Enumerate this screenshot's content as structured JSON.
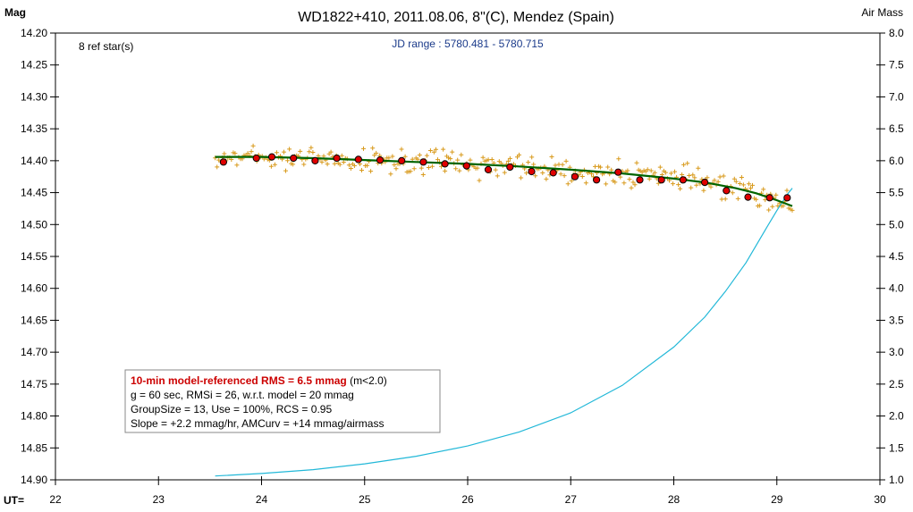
{
  "chart_data": {
    "type": "scatter",
    "title": "WD1822+410, 2011.08.06, 8\"(C), Mendez (Spain)",
    "ylabel_left": "Mag",
    "ylabel_right": "Air Mass",
    "xlabel": "UT=",
    "ylim_left": [
      14.9,
      14.2
    ],
    "ylim_right": [
      1.0,
      8.0
    ],
    "xlim": [
      22,
      30
    ],
    "grid": false,
    "x_ticks": [
      "22",
      "23",
      "24",
      "25",
      "26",
      "27",
      "28",
      "29",
      "30"
    ],
    "y_left_ticks": [
      "14.20",
      "14.25",
      "14.30",
      "14.35",
      "14.40",
      "14.45",
      "14.50",
      "14.55",
      "14.60",
      "14.65",
      "14.70",
      "14.75",
      "14.80",
      "14.85",
      "14.90"
    ],
    "y_right_ticks": [
      "8.0",
      "7.5",
      "7.0",
      "6.5",
      "6.0",
      "5.5",
      "5.0",
      "4.5",
      "4.0",
      "3.5",
      "3.0",
      "2.5",
      "2.0",
      "1.5",
      "1.0"
    ],
    "ref_stars_text": "8 ref star(s)",
    "jd_range_text": "JD range : 5780.481 - 5780.715",
    "info_box": {
      "headline": "10-min model-referenced RMS = 6.5 mmag",
      "headline_suffix": " (m<2.0)",
      "line2": "g = 60 sec, RMSi = 26, w.r.t. model = 20 mmag",
      "line3": "GroupSize = 13, Use = 100%, RCS = 0.95",
      "line4": "Slope = +2.2 mmag/hr, AMCurv = +14 mmag/airmass"
    },
    "series": [
      {
        "kind": "binned_means",
        "x": [
          23.63,
          23.95,
          24.1,
          24.31,
          24.52,
          24.73,
          24.94,
          25.15,
          25.36,
          25.57,
          25.78,
          25.99,
          26.2,
          26.41,
          26.62,
          26.83,
          27.04,
          27.25,
          27.46,
          27.67,
          27.88,
          28.09,
          28.3,
          28.51,
          28.72,
          28.93,
          29.1
        ],
        "y": [
          14.402,
          14.396,
          14.394,
          14.396,
          14.4,
          14.396,
          14.398,
          14.399,
          14.4,
          14.402,
          14.405,
          14.408,
          14.414,
          14.41,
          14.417,
          14.419,
          14.425,
          14.43,
          14.418,
          14.43,
          14.43,
          14.43,
          14.434,
          14.447,
          14.457,
          14.458,
          14.458
        ]
      },
      {
        "kind": "model_fit",
        "x": [
          23.55,
          24.0,
          24.5,
          25.0,
          25.5,
          26.0,
          26.5,
          27.0,
          27.5,
          28.0,
          28.3,
          28.6,
          28.8,
          29.0,
          29.15
        ],
        "y": [
          14.394,
          14.394,
          14.396,
          14.399,
          14.402,
          14.405,
          14.409,
          14.414,
          14.42,
          14.428,
          14.434,
          14.443,
          14.451,
          14.462,
          14.471
        ]
      },
      {
        "kind": "air_mass",
        "x": [
          23.55,
          24.0,
          24.5,
          25.0,
          25.5,
          26.0,
          26.5,
          27.0,
          27.5,
          28.0,
          28.3,
          28.5,
          28.7,
          28.9,
          29.0,
          29.1,
          29.15
        ],
        "y": [
          1.06,
          1.1,
          1.16,
          1.25,
          1.37,
          1.53,
          1.75,
          2.05,
          2.48,
          3.08,
          3.55,
          3.95,
          4.4,
          4.95,
          5.22,
          5.47,
          5.57
        ]
      }
    ],
    "colors": {
      "frame": "#000000",
      "raw_points": "#d89a1c",
      "binned_fill": "#e00000",
      "model": "#006400",
      "air_mass": "#22b8d8",
      "jd_text": "#1a3a8a",
      "info_red": "#cc0000"
    }
  }
}
